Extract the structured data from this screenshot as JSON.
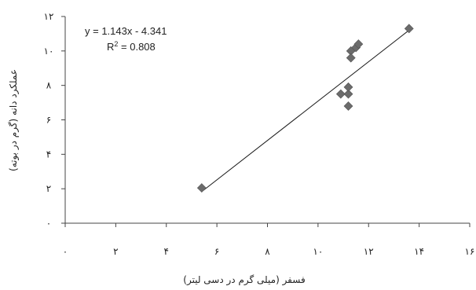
{
  "chart_data": {
    "type": "scatter",
    "title": "",
    "xlabel": "فسفر (میلی گرم در دسی لیتر)",
    "ylabel": "عملکرد دانه (گرم در بوته)",
    "xlim": [
      0,
      16
    ],
    "ylim": [
      0,
      12
    ],
    "x_ticks": [
      0,
      2,
      4,
      6,
      8,
      10,
      12,
      14,
      16
    ],
    "x_tick_labels": [
      "۰",
      "۲",
      "۴",
      "۶",
      "۸",
      "۱۰",
      "۱۲",
      "۱۴",
      "۱۶"
    ],
    "y_ticks": [
      0,
      2,
      4,
      6,
      8,
      10,
      12
    ],
    "y_tick_labels": [
      "۰",
      "۲",
      "۴",
      "۶",
      "۸",
      "۱۰",
      "۱۲"
    ],
    "grid": false,
    "marker": "diamond",
    "marker_color": "#6b6b6b",
    "line_color": "#1a1a1a",
    "series": [
      {
        "points": [
          {
            "x": 5.4,
            "y": 2.05
          },
          {
            "x": 10.9,
            "y": 7.5
          },
          {
            "x": 11.2,
            "y": 7.5
          },
          {
            "x": 11.2,
            "y": 7.9
          },
          {
            "x": 11.2,
            "y": 6.8
          },
          {
            "x": 11.3,
            "y": 10.0
          },
          {
            "x": 11.3,
            "y": 9.6
          },
          {
            "x": 11.5,
            "y": 10.2
          },
          {
            "x": 11.6,
            "y": 10.4
          },
          {
            "x": 13.6,
            "y": 11.3
          }
        ]
      }
    ],
    "trendline": {
      "slope": 1.143,
      "intercept": -4.341,
      "x_range": [
        5.4,
        13.6
      ]
    },
    "annotations": {
      "equation": "y = 1.143x - 4.341",
      "r2_prefix": "R",
      "r2_superscript": "2",
      "r2_value": " = 0.808"
    }
  }
}
